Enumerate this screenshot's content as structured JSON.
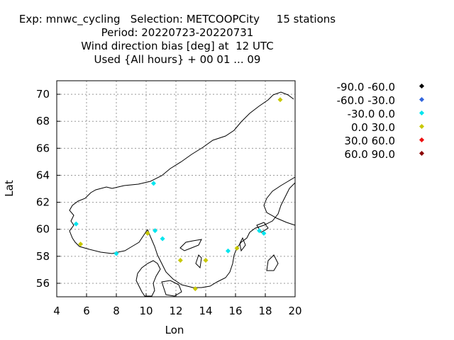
{
  "header": {
    "line1": "Exp: mnwc_cycling   Selection: METCOOPCity     15 stations",
    "line2": "Period: 20220723-20220731",
    "line3": "Wind direction bias [deg] at  12 UTC",
    "line4": "Used {All hours} + 00 01 ... 09"
  },
  "legend": [
    {
      "label": "-90.0 -60.0",
      "color": "#000000"
    },
    {
      "label": "-60.0 -30.0",
      "color": "#3366dd"
    },
    {
      "label": "-30.0 0.0",
      "color": "#00e5ee"
    },
    {
      "label": "0.0 30.0",
      "color": "#c8c800"
    },
    {
      "label": "30.0 60.0",
      "color": "#ee1111"
    },
    {
      "label": "60.0 90.0",
      "color": "#8b0000"
    }
  ],
  "chart_data": {
    "type": "scatter",
    "title": "Wind direction bias [deg] at  12 UTC",
    "xlabel": "Lon",
    "ylabel": "Lat",
    "xlim": [
      4,
      20
    ],
    "ylim": [
      55,
      71
    ],
    "xticks": [
      "4",
      "6",
      "8",
      "10",
      "12",
      "14",
      "16",
      "18",
      "20"
    ],
    "yticks": [
      "56",
      "58",
      "60",
      "62",
      "64",
      "66",
      "68",
      "70"
    ],
    "grid": true,
    "legend_position": "right",
    "series": [
      {
        "name": "-30.0 0.0",
        "color": "#00e5ee",
        "points": [
          [
            5.3,
            60.4
          ],
          [
            8.0,
            58.2
          ],
          [
            10.5,
            63.4
          ],
          [
            10.6,
            59.9
          ],
          [
            11.1,
            59.3
          ],
          [
            15.5,
            58.4
          ],
          [
            17.6,
            59.9
          ],
          [
            17.9,
            59.7
          ]
        ]
      },
      {
        "name": "0.0 30.0",
        "color": "#c8c800",
        "points": [
          [
            5.6,
            58.9
          ],
          [
            10.1,
            59.7
          ],
          [
            12.3,
            57.7
          ],
          [
            14.0,
            57.7
          ],
          [
            13.3,
            55.6
          ],
          [
            16.1,
            58.6
          ],
          [
            19.0,
            69.6
          ]
        ]
      }
    ]
  }
}
